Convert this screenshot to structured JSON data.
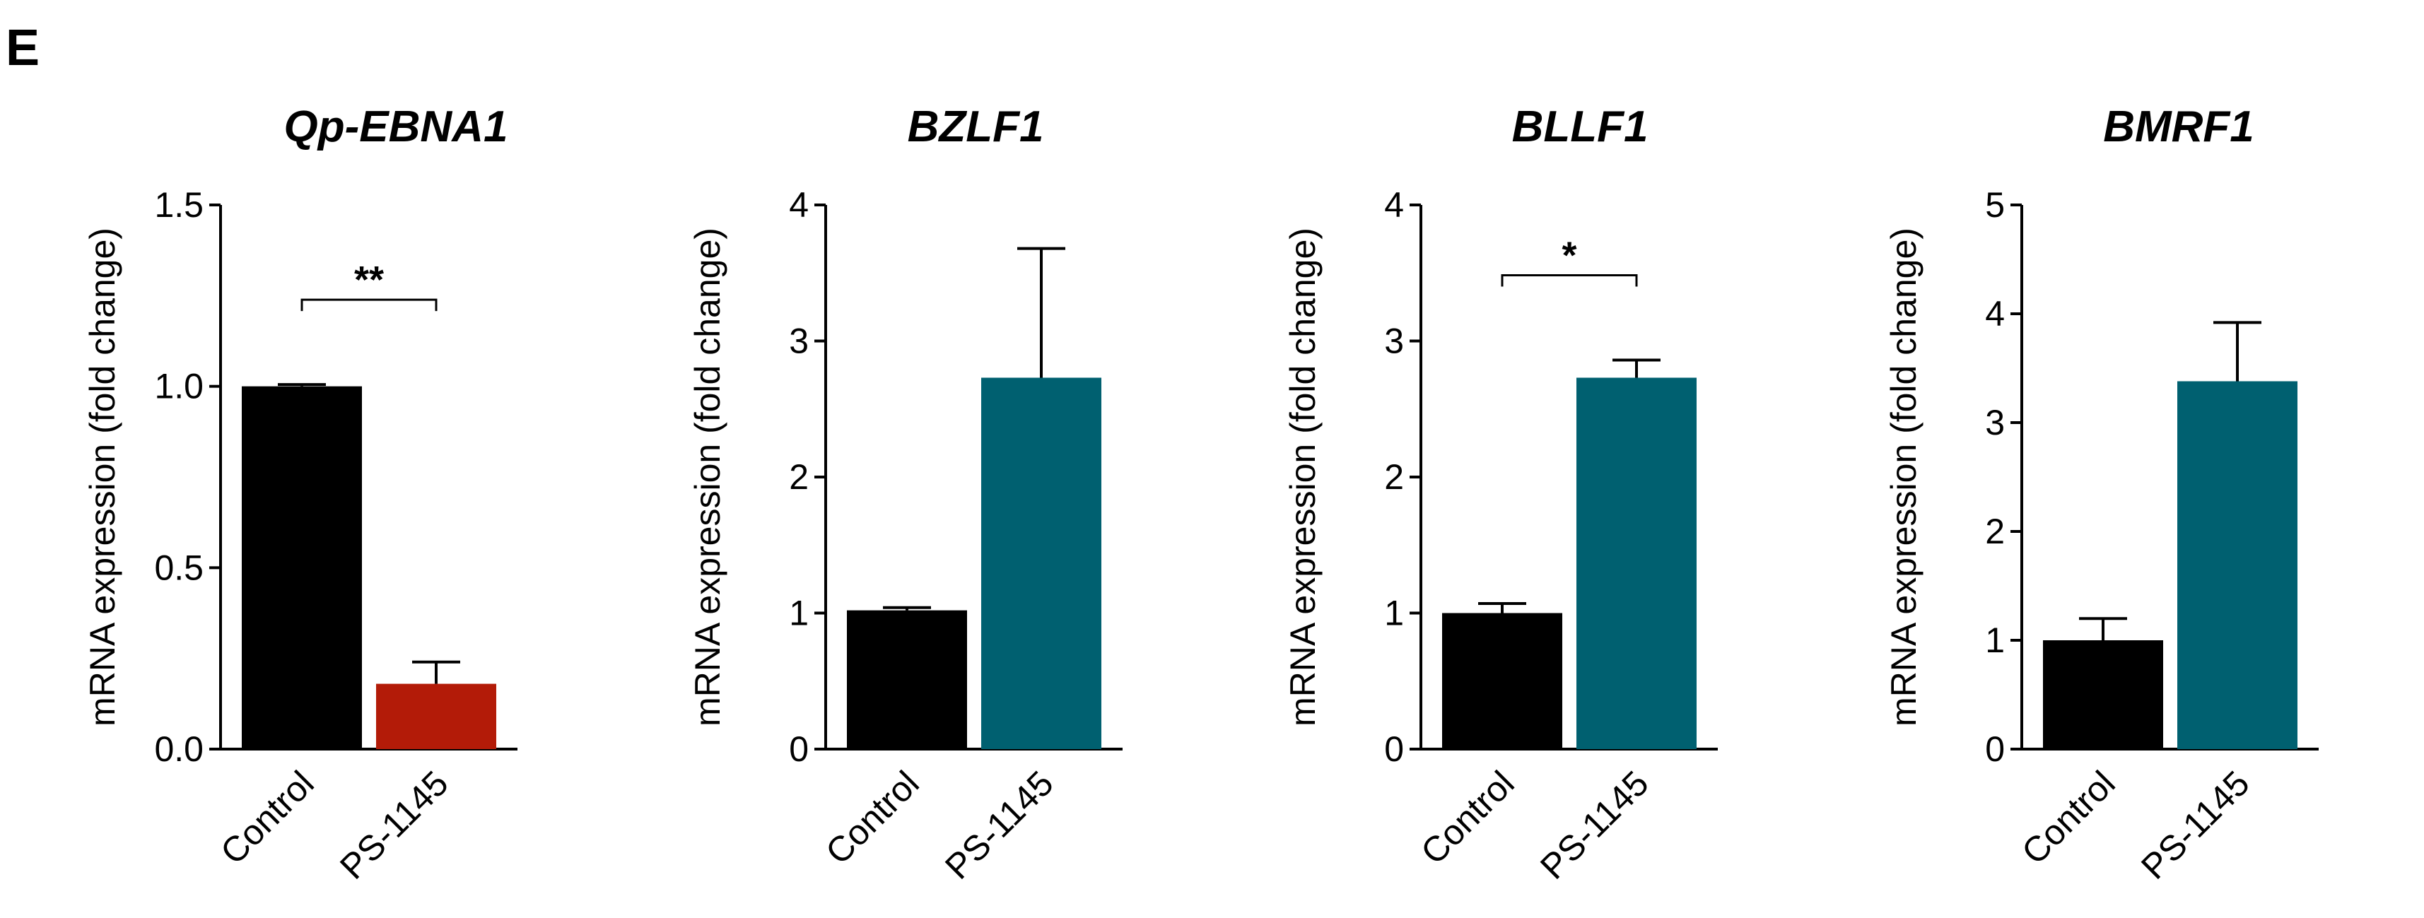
{
  "panel_label": "E",
  "chart_data": [
    {
      "type": "bar",
      "title": "Qp-EBNA1",
      "ylabel": "mRNA expression (fold change)",
      "categories": [
        "Control",
        "PS-1145"
      ],
      "values": [
        1.0,
        0.18
      ],
      "errors": [
        0.005,
        0.06
      ],
      "colors": [
        "#000000",
        "#B31B08"
      ],
      "ylim": [
        0,
        1.5
      ],
      "yticks": [
        0,
        0.5,
        1.0,
        1.5
      ],
      "ytick_labels": [
        "0.0",
        "0.5",
        "1.0",
        "1.5"
      ],
      "significance": "**"
    },
    {
      "type": "bar",
      "title": "BZLF1",
      "ylabel": "mRNA expression (fold change)",
      "categories": [
        "Control",
        "PS-1145"
      ],
      "values": [
        1.02,
        2.73
      ],
      "errors": [
        0.02,
        0.95
      ],
      "colors": [
        "#000000",
        "#006070"
      ],
      "ylim": [
        0,
        4
      ],
      "yticks": [
        0,
        1,
        2,
        3,
        4
      ],
      "ytick_labels": [
        "0",
        "1",
        "2",
        "3",
        "4"
      ],
      "significance": ""
    },
    {
      "type": "bar",
      "title": "BLLF1",
      "ylabel": "mRNA expression (fold change)",
      "categories": [
        "Control",
        "PS-1145"
      ],
      "values": [
        1.0,
        2.73
      ],
      "errors": [
        0.07,
        0.13
      ],
      "colors": [
        "#000000",
        "#006070"
      ],
      "ylim": [
        0,
        4
      ],
      "yticks": [
        0,
        1,
        2,
        3,
        4
      ],
      "ytick_labels": [
        "0",
        "1",
        "2",
        "3",
        "4"
      ],
      "significance": "*"
    },
    {
      "type": "bar",
      "title": "BMRF1",
      "ylabel": "mRNA expression (fold change)",
      "categories": [
        "Control",
        "PS-1145"
      ],
      "values": [
        1.0,
        3.38
      ],
      "errors": [
        0.2,
        0.54
      ],
      "colors": [
        "#000000",
        "#006070"
      ],
      "ylim": [
        0,
        5
      ],
      "yticks": [
        0,
        1,
        2,
        3,
        4,
        5
      ],
      "ytick_labels": [
        "0",
        "1",
        "2",
        "3",
        "4",
        "5"
      ],
      "significance": ""
    }
  ]
}
